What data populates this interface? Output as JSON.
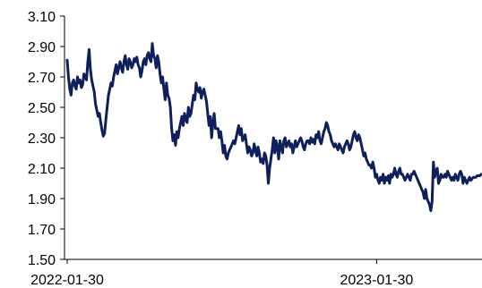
{
  "chart_data": {
    "type": "line",
    "title": "",
    "xlabel": "",
    "ylabel": "",
    "ylim": [
      1.5,
      3.1
    ],
    "y_ticks": [
      "1.50",
      "1.70",
      "1.90",
      "2.10",
      "2.30",
      "2.50",
      "2.70",
      "2.90",
      "3.10"
    ],
    "x_tick_labels": [
      {
        "label": "2022-01-30",
        "index": 0
      },
      {
        "label": "2023-01-30",
        "index": 240
      }
    ],
    "grid": false,
    "legend": "none",
    "line_color": "#0d1f5c",
    "series": [
      {
        "name": "",
        "start_date": "2022-01-30",
        "values": [
          2.81,
          2.7,
          2.62,
          2.58,
          2.66,
          2.68,
          2.64,
          2.62,
          2.7,
          2.66,
          2.68,
          2.63,
          2.65,
          2.72,
          2.7,
          2.68,
          2.8,
          2.88,
          2.75,
          2.68,
          2.64,
          2.6,
          2.52,
          2.48,
          2.44,
          2.46,
          2.4,
          2.35,
          2.31,
          2.33,
          2.42,
          2.5,
          2.58,
          2.62,
          2.66,
          2.64,
          2.7,
          2.74,
          2.78,
          2.72,
          2.76,
          2.8,
          2.76,
          2.73,
          2.8,
          2.84,
          2.78,
          2.75,
          2.82,
          2.8,
          2.76,
          2.78,
          2.82,
          2.8,
          2.83,
          2.78,
          2.76,
          2.7,
          2.74,
          2.8,
          2.82,
          2.78,
          2.84,
          2.86,
          2.82,
          2.8,
          2.92,
          2.84,
          2.82,
          2.76,
          2.84,
          2.8,
          2.72,
          2.66,
          2.7,
          2.62,
          2.55,
          2.66,
          2.58,
          2.56,
          2.5,
          2.36,
          2.28,
          2.32,
          2.25,
          2.34,
          2.3,
          2.36,
          2.4,
          2.44,
          2.38,
          2.46,
          2.42,
          2.4,
          2.5,
          2.44,
          2.46,
          2.52,
          2.58,
          2.55,
          2.66,
          2.62,
          2.6,
          2.63,
          2.56,
          2.6,
          2.62,
          2.58,
          2.54,
          2.46,
          2.38,
          2.44,
          2.3,
          2.4,
          2.46,
          2.36,
          2.36,
          2.36,
          2.3,
          2.34,
          2.28,
          2.2,
          2.25,
          2.18,
          2.16,
          2.2,
          2.22,
          2.24,
          2.26,
          2.28,
          2.26,
          2.3,
          2.34,
          2.38,
          2.32,
          2.36,
          2.28,
          2.3,
          2.32,
          2.26,
          2.2,
          2.24,
          2.22,
          2.18,
          2.2,
          2.26,
          2.22,
          2.18,
          2.24,
          2.2,
          2.14,
          2.16,
          2.13,
          2.2,
          2.18,
          2.12,
          2.0,
          2.1,
          2.16,
          2.22,
          2.3,
          2.2,
          2.28,
          2.24,
          2.16,
          2.28,
          2.24,
          2.2,
          2.28,
          2.3,
          2.24,
          2.26,
          2.28,
          2.24,
          2.26,
          2.2,
          2.24,
          2.28,
          2.24,
          2.26,
          2.28,
          2.3,
          2.28,
          2.24,
          2.22,
          2.26,
          2.28,
          2.28,
          2.26,
          2.3,
          2.27,
          2.29,
          2.26,
          2.32,
          2.3,
          2.34,
          2.28,
          2.26,
          2.3,
          2.34,
          2.36,
          2.4,
          2.38,
          2.34,
          2.32,
          2.28,
          2.26,
          2.24,
          2.26,
          2.24,
          2.22,
          2.26,
          2.24,
          2.22,
          2.2,
          2.24,
          2.26,
          2.28,
          2.26,
          2.22,
          2.24,
          2.28,
          2.32,
          2.34,
          2.3,
          2.28,
          2.32,
          2.3,
          2.26,
          2.22,
          2.18,
          2.2,
          2.16,
          2.14,
          2.12,
          2.12,
          2.1,
          2.14,
          2.1,
          2.04,
          2.06,
          2.02,
          2.0,
          2.04,
          2.02,
          2.06,
          2.0,
          2.04,
          2.02,
          2.05,
          2.0,
          2.06,
          2.04,
          2.06,
          2.1,
          2.06,
          2.04,
          2.08,
          2.1,
          2.06,
          2.06,
          2.04,
          2.02,
          2.04,
          2.06,
          2.04,
          2.02,
          2.06,
          2.06,
          2.08,
          2.06,
          2.04,
          2.02,
          2.0,
          1.98,
          1.96,
          1.94,
          1.9,
          1.96,
          1.9,
          1.88,
          1.86,
          1.82,
          1.88,
          2.14,
          2.04,
          2.08,
          2.1,
          2.0,
          2.02,
          2.06,
          2.04,
          2.04,
          2.06,
          2.04,
          2.08,
          2.06,
          2.04,
          2.02,
          2.04,
          2.02,
          2.06,
          2.04,
          2.02,
          2.06,
          2.08,
          2.06,
          2.0,
          2.04,
          2.02,
          2.0,
          2.02,
          2.04,
          2.02,
          2.03,
          2.04,
          2.04,
          2.04,
          2.05,
          2.05,
          2.05,
          2.06
        ]
      }
    ]
  }
}
